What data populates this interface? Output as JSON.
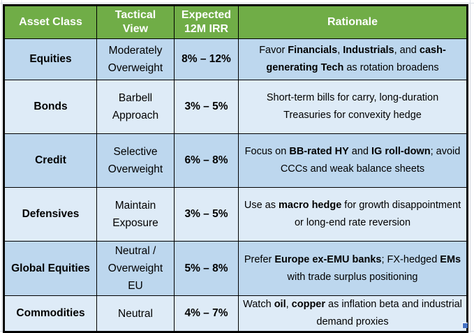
{
  "colors": {
    "header_bg": "#70AD47",
    "header_text": "#FFFFFF",
    "row_a": "#BDD7EE",
    "row_b": "#DEEBF7",
    "border": "#000000",
    "gridline": "#D6DCE4",
    "fill_handle": "#4472C4"
  },
  "table": {
    "columns": [
      "Asset Class",
      "Tactical View",
      "Expected 12M IRR",
      "Rationale"
    ],
    "rows": [
      {
        "asset_class": "Equities",
        "tactical_view": "Moderately Overweight",
        "expected_12m_irr": "8% – 12%",
        "rationale": [
          {
            "t": "Favor ",
            "b": false
          },
          {
            "t": "Financials",
            "b": true
          },
          {
            "t": ", ",
            "b": false
          },
          {
            "t": "Industrials",
            "b": true
          },
          {
            "t": ", and ",
            "b": false
          },
          {
            "t": "cash-generating Tech",
            "b": true
          },
          {
            "t": " as rotation broadens",
            "b": false
          }
        ]
      },
      {
        "asset_class": "Bonds",
        "tactical_view": "Barbell Approach",
        "expected_12m_irr": "3% – 5%",
        "rationale": [
          {
            "t": "Short-term bills for carry, long-duration Treasuries for convexity hedge",
            "b": false
          }
        ]
      },
      {
        "asset_class": "Credit",
        "tactical_view": "Selective Overweight",
        "expected_12m_irr": "6% – 8%",
        "rationale": [
          {
            "t": "Focus on ",
            "b": false
          },
          {
            "t": "BB-rated HY",
            "b": true
          },
          {
            "t": " and ",
            "b": false
          },
          {
            "t": "IG roll-down",
            "b": true
          },
          {
            "t": "; avoid CCCs and weak balance sheets",
            "b": false
          }
        ]
      },
      {
        "asset_class": "Defensives",
        "tactical_view": "Maintain Exposure",
        "expected_12m_irr": "3% – 5%",
        "rationale": [
          {
            "t": "Use as ",
            "b": false
          },
          {
            "t": "macro hedge",
            "b": true
          },
          {
            "t": " for growth disappointment or long-end rate reversion",
            "b": false
          }
        ]
      },
      {
        "asset_class": "Global Equities",
        "tactical_view": "Neutral / Overweight EU",
        "expected_12m_irr": "5% – 8%",
        "rationale": [
          {
            "t": "Prefer ",
            "b": false
          },
          {
            "t": "Europe ex-EMU banks",
            "b": true
          },
          {
            "t": "; FX-hedged ",
            "b": false
          },
          {
            "t": "EMs",
            "b": true
          },
          {
            "t": " with trade surplus positioning",
            "b": false
          }
        ]
      },
      {
        "asset_class": "Commodities",
        "tactical_view": "Neutral",
        "expected_12m_irr": "4% – 7%",
        "rationale": [
          {
            "t": "Watch ",
            "b": false
          },
          {
            "t": "oil",
            "b": true
          },
          {
            "t": ", ",
            "b": false
          },
          {
            "t": "copper",
            "b": true
          },
          {
            "t": " as inflation beta and industrial demand proxies",
            "b": false
          }
        ]
      }
    ]
  }
}
